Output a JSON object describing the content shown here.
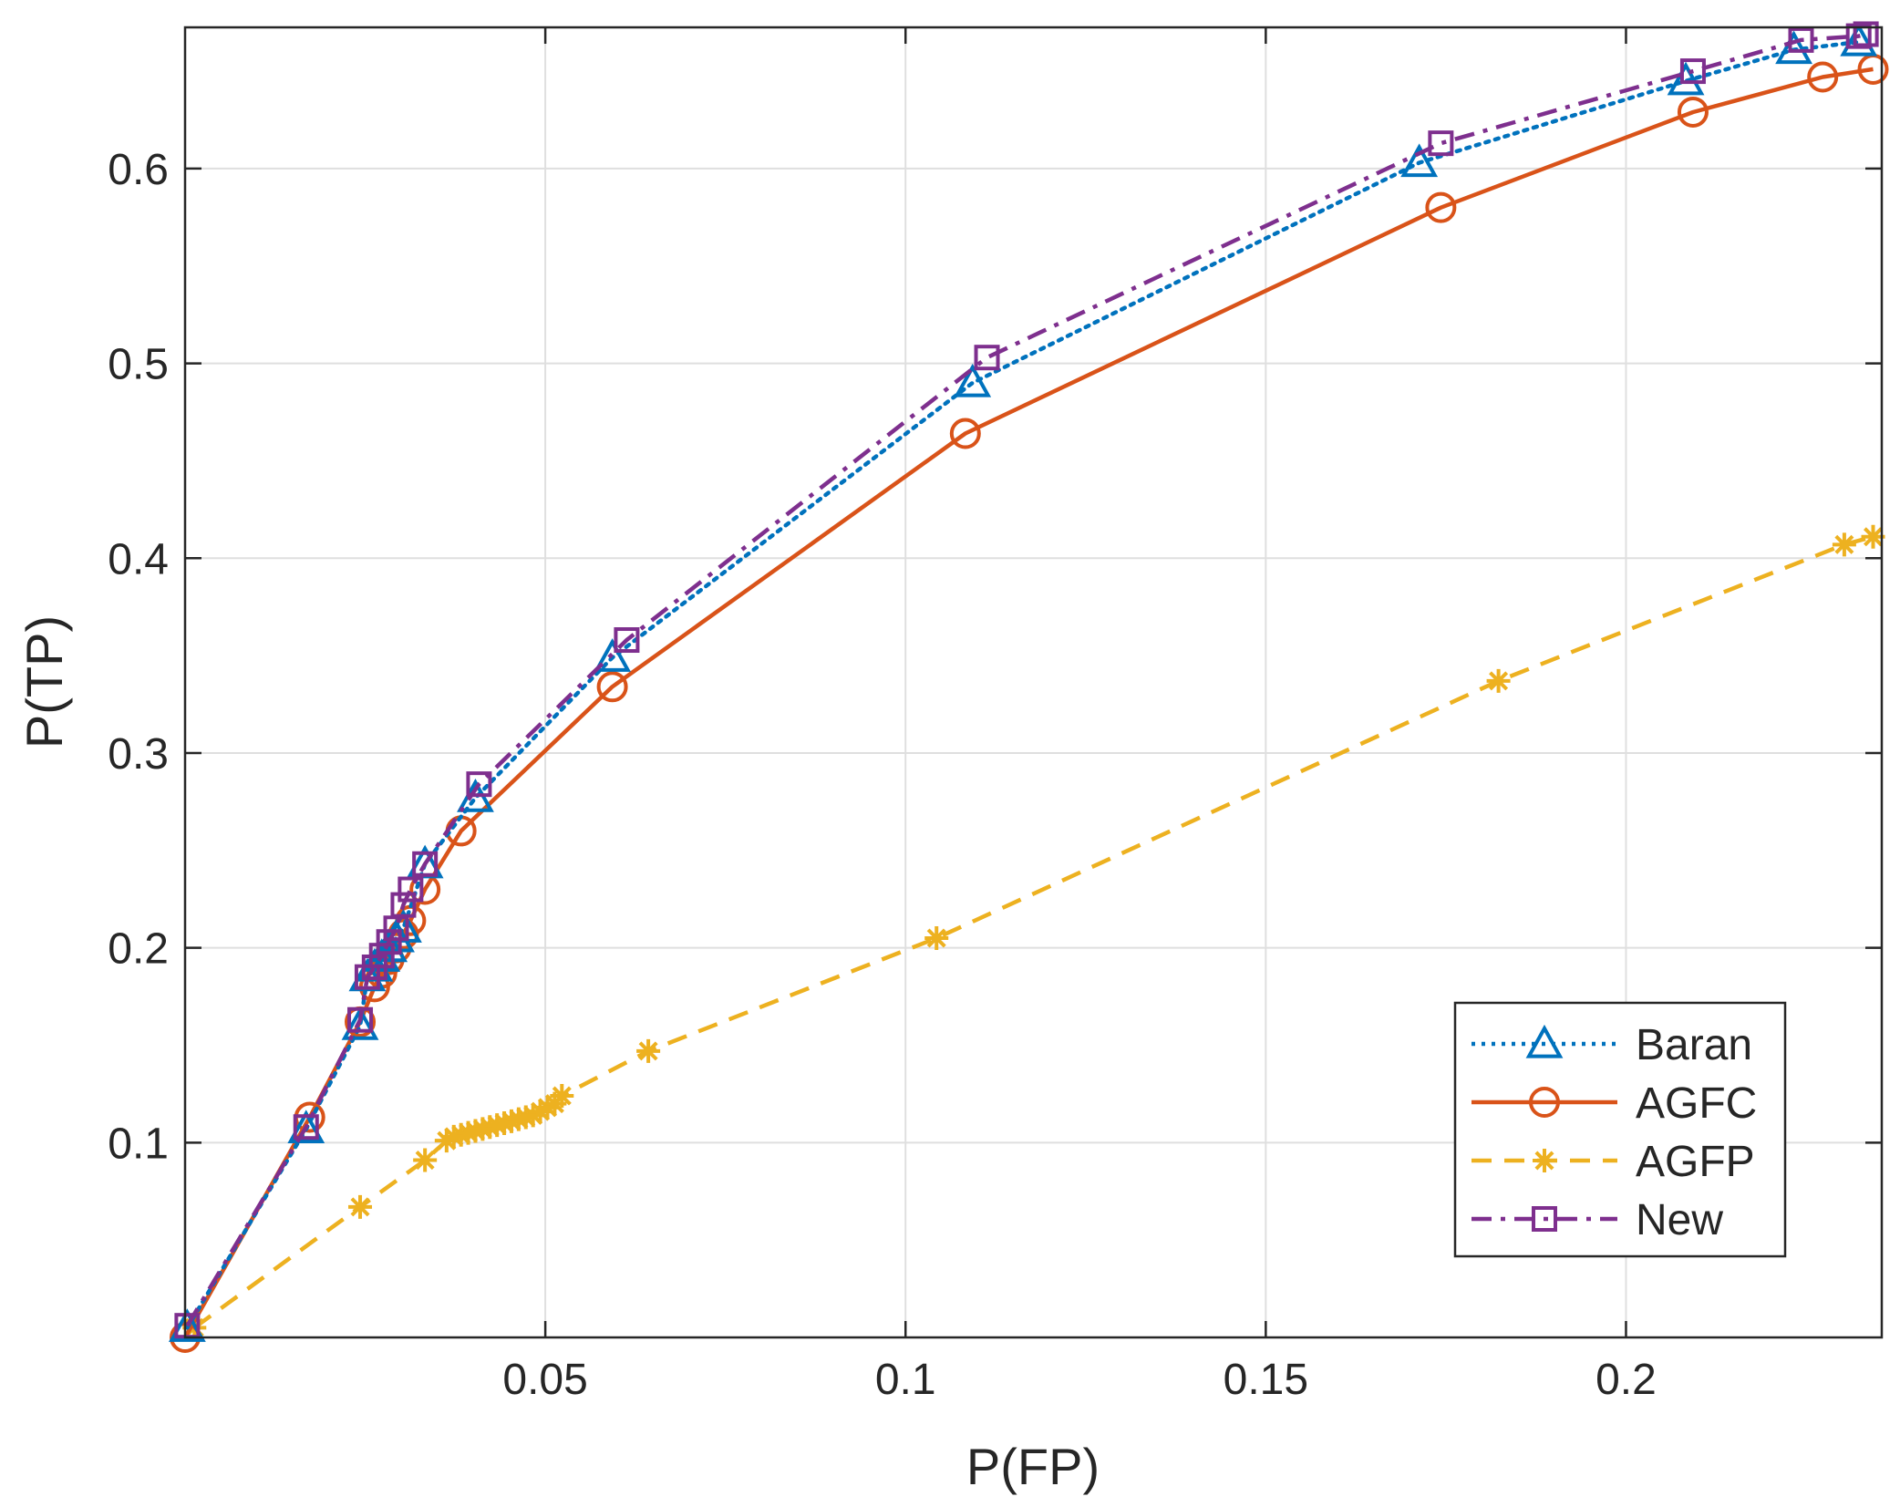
{
  "chart_data": {
    "type": "line",
    "title": "",
    "xlabel": "P(FP)",
    "ylabel": "P(TP)",
    "xlim": [
      0,
      0.2355
    ],
    "ylim": [
      0,
      0.6725
    ],
    "xticks": [
      0.05,
      0.1,
      0.15,
      0.2
    ],
    "xtick_labels": [
      "0.05",
      "0.1",
      "0.15",
      "0.2"
    ],
    "yticks": [
      0.1,
      0.2,
      0.3,
      0.4,
      0.5,
      0.6
    ],
    "ytick_labels": [
      "0.1",
      "0.2",
      "0.3",
      "0.4",
      "0.5",
      "0.6"
    ],
    "grid": true,
    "legend_position": "bottom-right",
    "series": [
      {
        "name": "Baran",
        "color": "#0072BD",
        "line_style": "dotted",
        "marker": "triangle",
        "x": [
          0.0003,
          0.0168,
          0.0243,
          0.0253,
          0.0263,
          0.0273,
          0.0283,
          0.0293,
          0.0303,
          0.0333,
          0.0403,
          0.0593,
          0.1093,
          0.1713,
          0.2083,
          0.2233,
          0.2323
        ],
        "y": [
          0.005,
          0.107,
          0.16,
          0.185,
          0.19,
          0.195,
          0.2,
          0.205,
          0.21,
          0.243,
          0.277,
          0.349,
          0.49,
          0.603,
          0.645,
          0.661,
          0.665
        ]
      },
      {
        "name": "AGFC",
        "color": "#D95319",
        "line_style": "solid",
        "marker": "circle",
        "x": [
          0.0,
          0.0173,
          0.0243,
          0.0263,
          0.0273,
          0.0283,
          0.0293,
          0.0303,
          0.0313,
          0.0333,
          0.0383,
          0.0593,
          0.1083,
          0.1743,
          0.2093,
          0.2273,
          0.2343
        ],
        "y": [
          0.0,
          0.113,
          0.162,
          0.18,
          0.187,
          0.194,
          0.2,
          0.207,
          0.214,
          0.23,
          0.26,
          0.334,
          0.464,
          0.58,
          0.629,
          0.647,
          0.651
        ]
      },
      {
        "name": "AGFP",
        "color": "#EDB120",
        "line_style": "dashed",
        "marker": "asterisk",
        "x": [
          0.0013,
          0.0243,
          0.0333,
          0.0363,
          0.0373,
          0.0383,
          0.0393,
          0.0403,
          0.0413,
          0.0423,
          0.0433,
          0.0443,
          0.0453,
          0.0463,
          0.0473,
          0.0483,
          0.0493,
          0.0503,
          0.0513,
          0.0523,
          0.0643,
          0.1043,
          0.1823,
          0.2303,
          0.2343
        ],
        "y": [
          0.005,
          0.067,
          0.091,
          0.101,
          0.103,
          0.104,
          0.105,
          0.106,
          0.107,
          0.108,
          0.109,
          0.11,
          0.111,
          0.112,
          0.113,
          0.114,
          0.116,
          0.118,
          0.12,
          0.124,
          0.147,
          0.205,
          0.337,
          0.407,
          0.411
        ]
      },
      {
        "name": "New",
        "color": "#7E2F8E",
        "line_style": "dashdot",
        "marker": "square",
        "x": [
          0.0003,
          0.0168,
          0.0243,
          0.0253,
          0.0263,
          0.0273,
          0.0283,
          0.0293,
          0.0303,
          0.0313,
          0.0333,
          0.0408,
          0.0613,
          0.1113,
          0.1743,
          0.2093,
          0.2243,
          0.2323,
          0.2333
        ],
        "y": [
          0.006,
          0.108,
          0.163,
          0.185,
          0.19,
          0.196,
          0.203,
          0.21,
          0.222,
          0.23,
          0.243,
          0.284,
          0.358,
          0.503,
          0.613,
          0.65,
          0.666,
          0.668,
          0.669
        ]
      }
    ]
  }
}
